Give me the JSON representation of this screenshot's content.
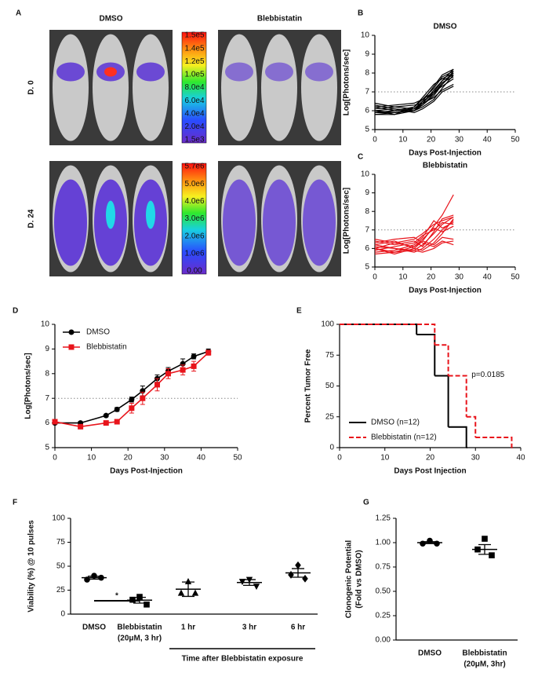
{
  "panel_labels": [
    "A",
    "B",
    "C",
    "D",
    "E",
    "F",
    "G"
  ],
  "imaging": {
    "columns": [
      "DMSO",
      "Blebbistatin"
    ],
    "rows": [
      "D. 0",
      "D. 24"
    ],
    "scales": [
      [
        "1.5e5",
        "1.4e5",
        "1.2e5",
        "1.0e5",
        "8.0e4",
        "6.0e4",
        "4.0e4",
        "2.0e4",
        "1.5e3"
      ],
      [
        "5.7e6",
        "5.0e6",
        "4.0e6",
        "3.0e6",
        "2.0e6",
        "1.0e6",
        "0.00"
      ]
    ]
  },
  "chart_data": [
    {
      "type": "line",
      "title": "DMSO",
      "xlabel": "Days Post-Injection",
      "ylabel": "Log[Photons/sec]",
      "x": [
        0,
        7,
        14,
        17,
        21,
        24,
        28
      ],
      "color": "#000000",
      "series": [
        {
          "values": [
            6.2,
            6.0,
            6.1,
            6.4,
            7.0,
            7.6,
            8.2
          ]
        },
        {
          "values": [
            5.9,
            5.9,
            6.0,
            6.3,
            6.8,
            7.4,
            8.0
          ]
        },
        {
          "values": [
            6.0,
            5.8,
            6.2,
            6.6,
            7.2,
            7.8,
            8.1
          ]
        },
        {
          "values": [
            6.3,
            6.1,
            6.0,
            6.2,
            6.6,
            7.2,
            7.9
          ]
        },
        {
          "values": [
            5.8,
            5.9,
            6.1,
            6.5,
            7.3,
            7.9,
            8.2
          ]
        },
        {
          "values": [
            6.1,
            6.2,
            6.3,
            6.4,
            6.7,
            7.1,
            7.4
          ]
        },
        {
          "values": [
            5.9,
            6.0,
            6.2,
            6.7,
            7.4,
            7.7,
            8.0
          ]
        },
        {
          "values": [
            6.4,
            6.2,
            6.1,
            6.3,
            6.9,
            7.5,
            7.8
          ]
        },
        {
          "values": [
            6.0,
            6.1,
            5.9,
            6.1,
            6.5,
            7.0,
            7.3
          ]
        },
        {
          "values": [
            5.8,
            5.8,
            6.0,
            6.4,
            7.1,
            7.6,
            7.9
          ]
        },
        {
          "values": [
            6.2,
            6.3,
            6.4,
            6.6,
            7.0,
            7.3,
            7.7
          ]
        },
        {
          "values": [
            6.0,
            5.9,
            6.1,
            6.5,
            6.9,
            7.4,
            8.1
          ]
        }
      ],
      "xlim": [
        0,
        50
      ],
      "xticks": [
        0,
        10,
        20,
        30,
        40,
        50
      ],
      "ylim": [
        5,
        10
      ],
      "yticks": [
        5,
        6,
        7,
        8,
        9,
        10
      ],
      "reference_line": 7
    },
    {
      "type": "line",
      "title": "Blebbistatin",
      "xlabel": "Days Post-Injection",
      "ylabel": "Log[Photons/sec]",
      "x": [
        0,
        7,
        14,
        17,
        21,
        24,
        28
      ],
      "color": "#e8141b",
      "series": [
        {
          "values": [
            6.5,
            6.3,
            6.1,
            6.4,
            7.2,
            7.8,
            8.9
          ]
        },
        {
          "values": [
            6.0,
            5.8,
            5.9,
            6.2,
            6.8,
            7.3,
            7.7
          ]
        },
        {
          "values": [
            6.2,
            6.4,
            6.0,
            5.9,
            6.3,
            6.8,
            7.6
          ]
        },
        {
          "values": [
            5.8,
            5.9,
            6.2,
            6.6,
            7.5,
            7.1,
            7.4
          ]
        },
        {
          "values": [
            6.1,
            6.0,
            5.8,
            6.0,
            6.5,
            7.0,
            7.5
          ]
        },
        {
          "values": [
            6.3,
            6.5,
            6.6,
            6.3,
            6.1,
            6.4,
            6.2
          ]
        },
        {
          "values": [
            5.9,
            6.1,
            6.3,
            6.7,
            7.0,
            7.4,
            7.3
          ]
        },
        {
          "values": [
            6.0,
            5.7,
            6.0,
            6.4,
            6.2,
            6.6,
            6.5
          ]
        },
        {
          "values": [
            6.4,
            6.2,
            6.4,
            6.1,
            6.9,
            7.6,
            7.8
          ]
        },
        {
          "values": [
            5.7,
            5.8,
            6.1,
            6.5,
            7.1,
            6.9,
            7.2
          ]
        },
        {
          "values": [
            6.2,
            6.0,
            5.9,
            5.8,
            6.0,
            6.3,
            6.4
          ]
        },
        {
          "values": [
            6.0,
            6.3,
            6.5,
            6.8,
            7.3,
            7.5,
            7.7
          ]
        }
      ],
      "xlim": [
        0,
        50
      ],
      "xticks": [
        0,
        10,
        20,
        30,
        40,
        50
      ],
      "ylim": [
        5,
        10
      ],
      "yticks": [
        5,
        6,
        7,
        8,
        9,
        10
      ],
      "reference_line": 7
    },
    {
      "type": "line",
      "xlabel": "Days Post-Injection",
      "ylabel": "Log[Photons/sec]",
      "x": [
        0,
        7,
        14,
        17,
        21,
        24,
        28,
        31,
        35,
        38,
        42
      ],
      "series": [
        {
          "name": "DMSO",
          "color": "#000000",
          "marker": "circle",
          "values": [
            6.0,
            6.0,
            6.3,
            6.55,
            6.95,
            7.3,
            7.8,
            8.1,
            8.4,
            8.7,
            8.9
          ],
          "errors": [
            0.05,
            0.05,
            0.05,
            0.08,
            0.1,
            0.2,
            0.15,
            0.15,
            0.2,
            0.1,
            0.1
          ]
        },
        {
          "name": "Blebbistatin",
          "color": "#e8141b",
          "marker": "square",
          "values": [
            6.05,
            5.85,
            6.0,
            6.05,
            6.6,
            7.0,
            7.55,
            8.0,
            8.15,
            8.3,
            8.85
          ],
          "errors": [
            0.05,
            0.08,
            0.05,
            0.08,
            0.2,
            0.25,
            0.25,
            0.2,
            0.2,
            0.2,
            0.1
          ]
        }
      ],
      "xlim": [
        0,
        50
      ],
      "xticks": [
        0,
        10,
        20,
        30,
        40,
        50
      ],
      "ylim": [
        5,
        10
      ],
      "yticks": [
        5,
        6,
        7,
        8,
        9,
        10
      ],
      "reference_line": 7,
      "legend": "upper left"
    },
    {
      "type": "step",
      "xlabel": "Days Post Injection",
      "ylabel": "Percent Tumor Free",
      "series": [
        {
          "name": "DMSO (n=12)",
          "color": "#000000",
          "dashed": false,
          "x": [
            0,
            17,
            21,
            24,
            28
          ],
          "values": [
            100,
            91.7,
            58.3,
            16.7,
            0
          ]
        },
        {
          "name": "Blebbistatin (n=12)",
          "color": "#e8141b",
          "dashed": true,
          "x": [
            0,
            21,
            24,
            28,
            30,
            38
          ],
          "values": [
            100,
            83.3,
            58.3,
            25,
            8.3,
            0
          ]
        }
      ],
      "annotation": "p=0.0185",
      "xlim": [
        0,
        40
      ],
      "xticks": [
        0,
        10,
        20,
        30,
        40
      ],
      "ylim": [
        0,
        100
      ],
      "yticks": [
        0,
        25,
        50,
        75,
        100
      ],
      "legend": "lower left"
    },
    {
      "type": "dot",
      "ylabel": "Viability (%) @ 10 pulses",
      "categories": [
        "DMSO",
        "Blebbistatin",
        "1 hr",
        "3 hr",
        "6 hr"
      ],
      "category_notes": [
        null,
        "(20μM, 3 hr)",
        null,
        null,
        null
      ],
      "markers": [
        "circle",
        "square",
        "triangle",
        "triangle-down",
        "diamond"
      ],
      "points": [
        [
          40,
          36,
          38
        ],
        [
          18,
          15,
          10
        ],
        [
          34,
          22,
          22
        ],
        [
          36,
          34,
          29
        ],
        [
          51,
          41,
          37
        ]
      ],
      "means": [
        38,
        14.5,
        26,
        33,
        43
      ],
      "sems": [
        1.5,
        3,
        7.5,
        3,
        4.5
      ],
      "annotation": "*",
      "bracket_label": "Time after Blebbistatin exposure",
      "color": "#000000",
      "ylim": [
        0,
        100
      ],
      "yticks": [
        0,
        25,
        50,
        75,
        100
      ]
    },
    {
      "type": "dot",
      "ylabel": [
        "Clonogenic Potential",
        "(Fold vs DMSO)"
      ],
      "categories": [
        "DMSO",
        "Blebbistatin"
      ],
      "category_notes": [
        null,
        "(20μM, 3hr)"
      ],
      "markers": [
        "circle",
        "square"
      ],
      "points": [
        [
          1.02,
          0.99,
          0.99
        ],
        [
          1.04,
          0.93,
          0.87
        ]
      ],
      "means": [
        1.0,
        0.93
      ],
      "sems": [
        0.01,
        0.05
      ],
      "color": "#000000",
      "ylim": [
        0,
        1.25
      ],
      "yticks": [
        {
          "value": 0,
          "label": "0.00"
        },
        {
          "value": 0.25,
          "label": "0.25"
        },
        {
          "value": 0.5,
          "label": "0.50"
        },
        {
          "value": 0.75,
          "label": "0.75"
        },
        {
          "value": 1,
          "label": "1.00"
        },
        {
          "value": 1.25,
          "label": "1.25"
        }
      ]
    }
  ]
}
